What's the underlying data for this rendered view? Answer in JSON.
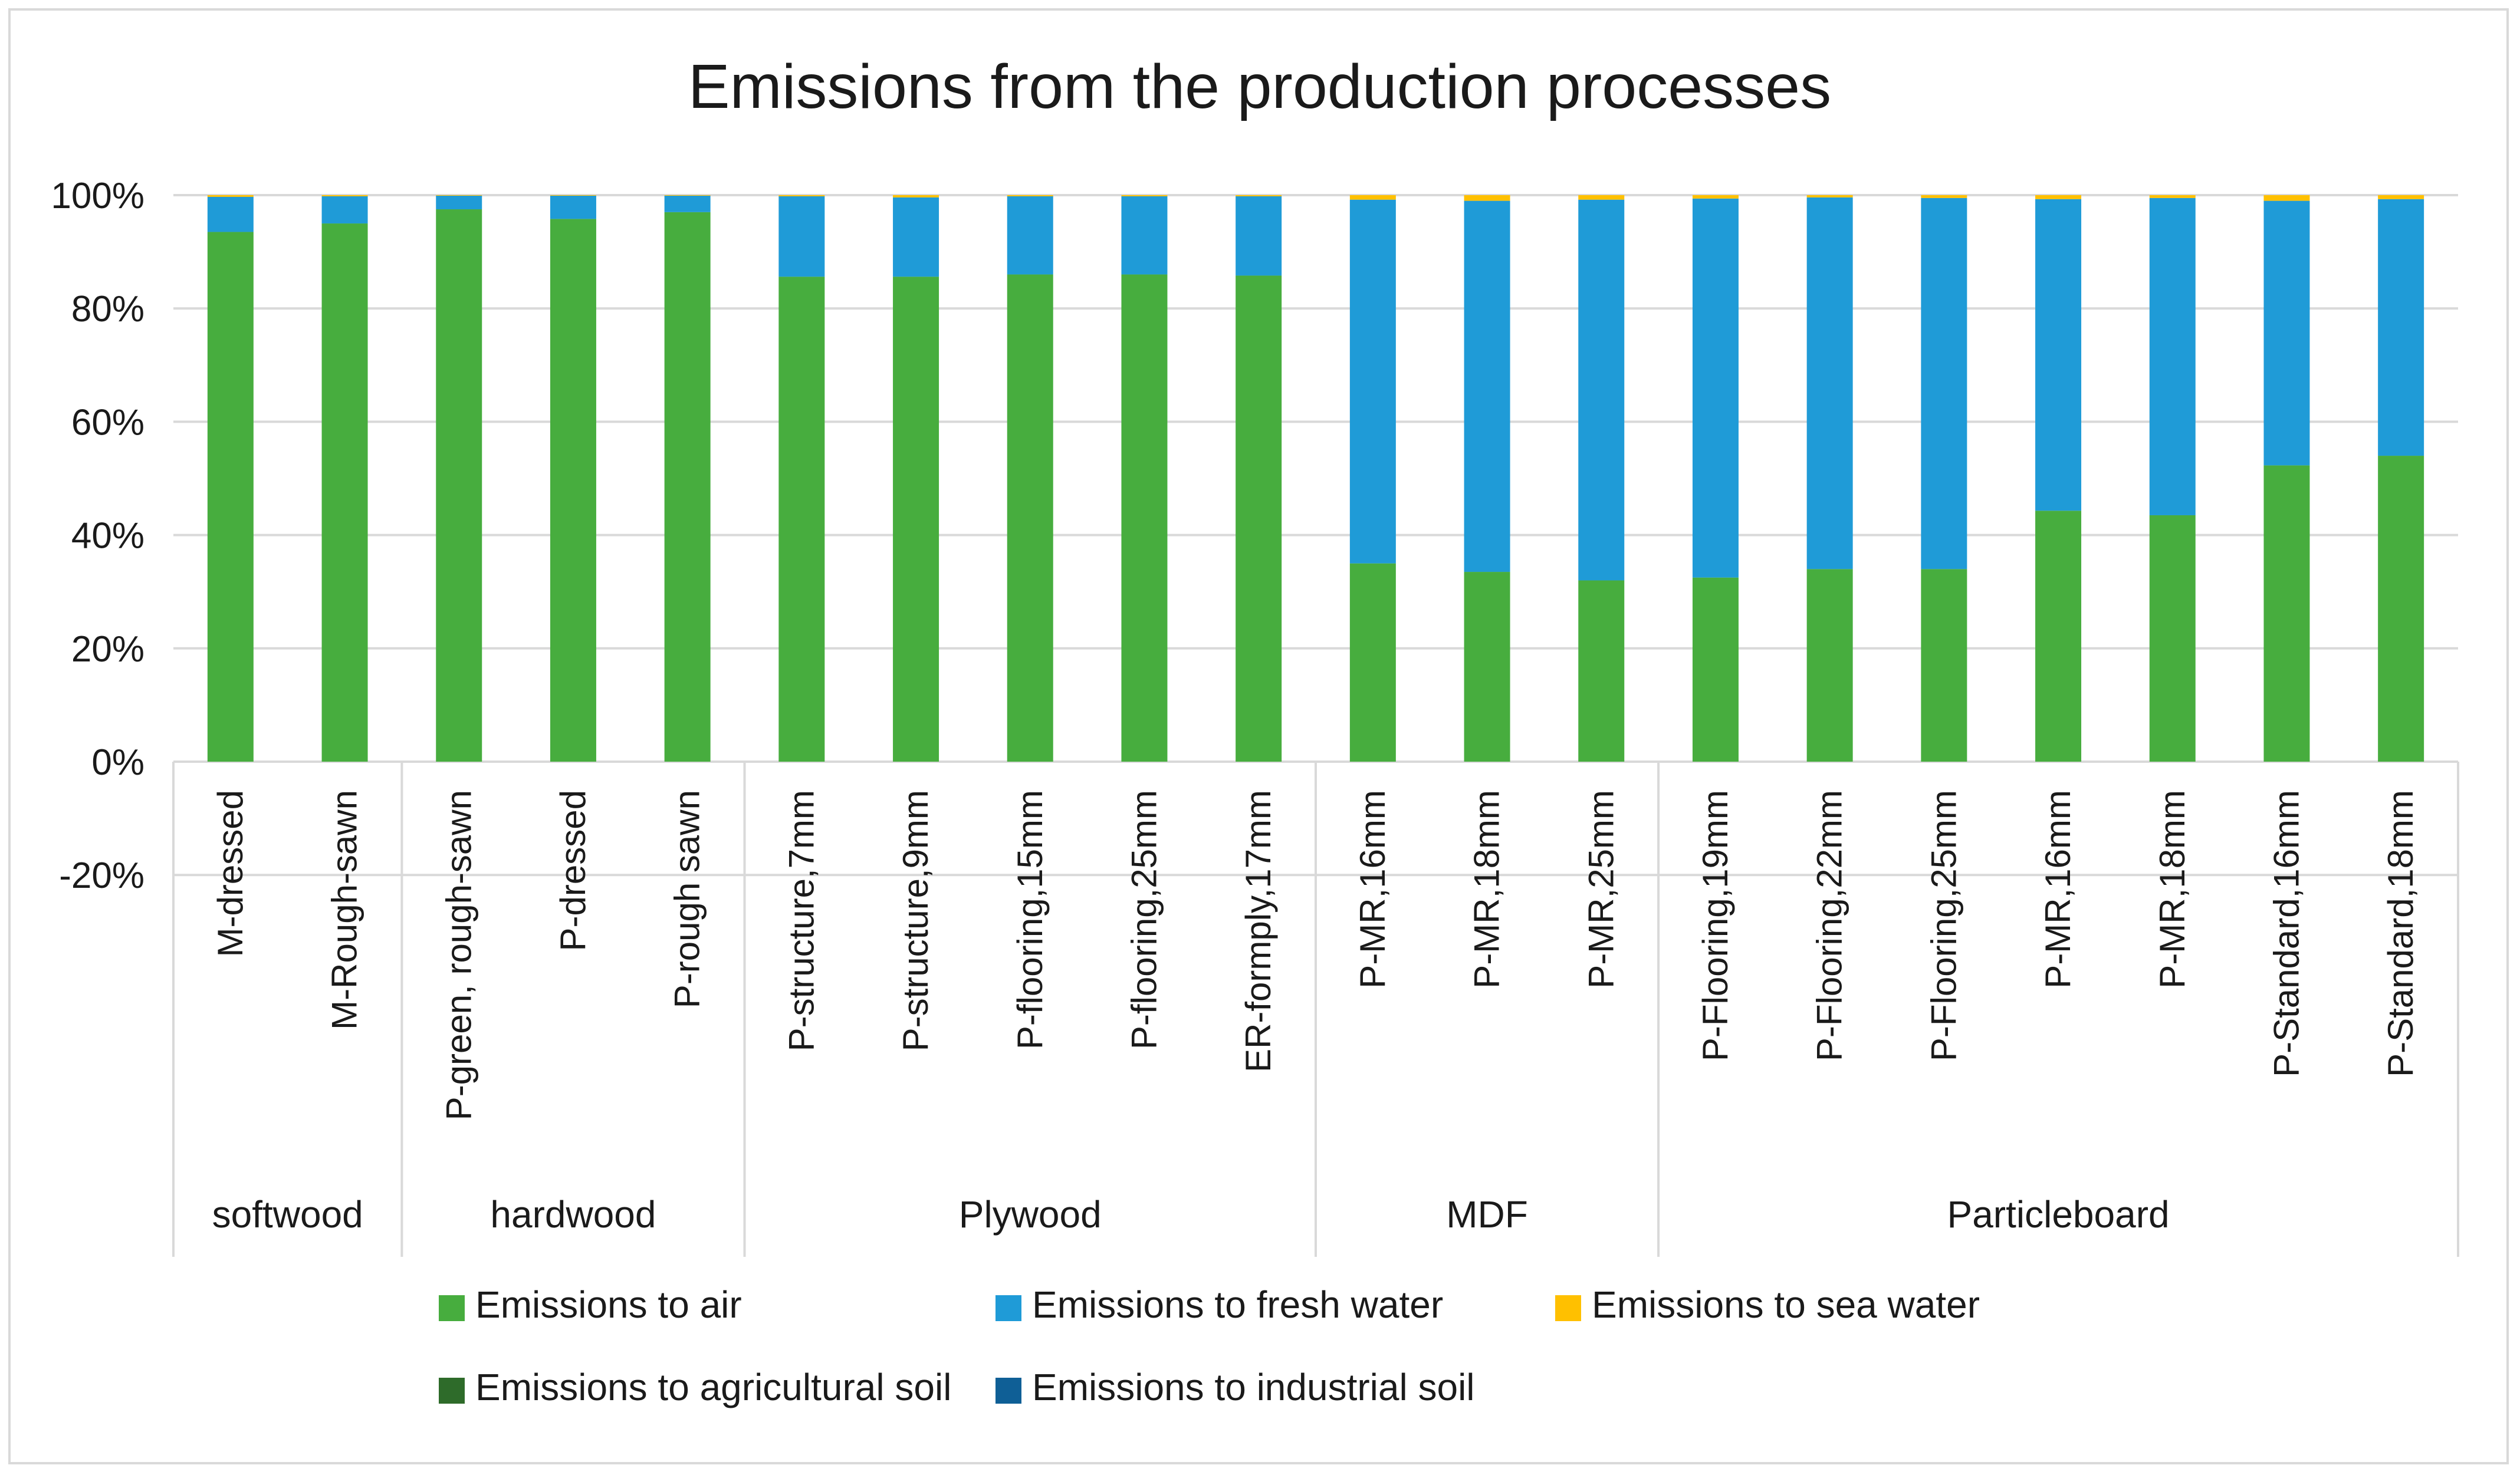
{
  "chart_data": {
    "type": "bar",
    "stacked": "percent",
    "title": "Emissions from the production processes",
    "xlabel": "",
    "ylabel": "",
    "ylim": [
      -20,
      100
    ],
    "yticks": [
      "-20%",
      "0%",
      "20%",
      "40%",
      "60%",
      "80%",
      "100%"
    ],
    "ytick_values": [
      -20,
      0,
      20,
      40,
      60,
      80,
      100
    ],
    "grid": true,
    "legend_position": "bottom",
    "categories": [
      "M-dressed",
      "M-Rough-sawn",
      "P-green, rough-sawn",
      "P-dressed",
      "P-rough sawn",
      "P-structure,7mm",
      "P-structure,9mm",
      "P-flooring,15mm",
      "P-flooring,25mm",
      "ER-formply,17mm",
      "P-MR,16mm",
      "P-MR,18mm",
      "P-MR,25mm",
      "P-Flooring,19mm",
      "P-Flooring,22mm",
      "P-Flooring,25mm",
      "P-MR,16mm",
      "P-MR,18mm",
      "P-Standard,16mm",
      "P-Standard,18mm"
    ],
    "groups": [
      {
        "label": "softwood",
        "count": 2
      },
      {
        "label": "hardwood",
        "count": 3
      },
      {
        "label": "Plywood",
        "count": 5
      },
      {
        "label": "MDF",
        "count": 3
      },
      {
        "label": "Particleboard",
        "count": 7
      }
    ],
    "series": [
      {
        "name": "Emissions to air",
        "color": "#47ad3e",
        "values": [
          93.5,
          95.0,
          97.5,
          95.8,
          97.0,
          85.6,
          85.6,
          86.0,
          86.0,
          85.8,
          35.0,
          33.5,
          32.0,
          32.5,
          34.0,
          34.0,
          44.3,
          43.5,
          52.3,
          54.0
        ]
      },
      {
        "name": "Emissions to fresh water",
        "color": "#1f9bd7",
        "values": [
          6.2,
          4.8,
          2.4,
          4.1,
          2.9,
          14.2,
          14.0,
          13.8,
          13.8,
          14.0,
          64.2,
          65.5,
          67.2,
          66.9,
          65.6,
          65.5,
          55.0,
          56.0,
          46.7,
          45.3
        ]
      },
      {
        "name": "Emissions to sea water",
        "color": "#ffc000",
        "values": [
          0.3,
          0.2,
          0.1,
          0.1,
          0.1,
          0.2,
          0.4,
          0.2,
          0.2,
          0.2,
          0.8,
          1.0,
          0.8,
          0.6,
          0.4,
          0.5,
          0.7,
          0.5,
          1.0,
          0.7
        ]
      },
      {
        "name": "Emissions to agricultural soil",
        "color": "#2e6b2a",
        "values": [
          0,
          0,
          0,
          0,
          0,
          0,
          0,
          0,
          0,
          0,
          0,
          0,
          0,
          0,
          0,
          0,
          0,
          0,
          0,
          0
        ]
      },
      {
        "name": "Emissions to industrial soil",
        "color": "#0f5f96",
        "values": [
          0,
          0,
          0,
          0,
          0,
          0,
          0,
          0,
          0,
          0,
          0,
          0,
          0,
          0,
          0,
          0,
          0,
          0,
          0,
          0
        ]
      }
    ]
  }
}
